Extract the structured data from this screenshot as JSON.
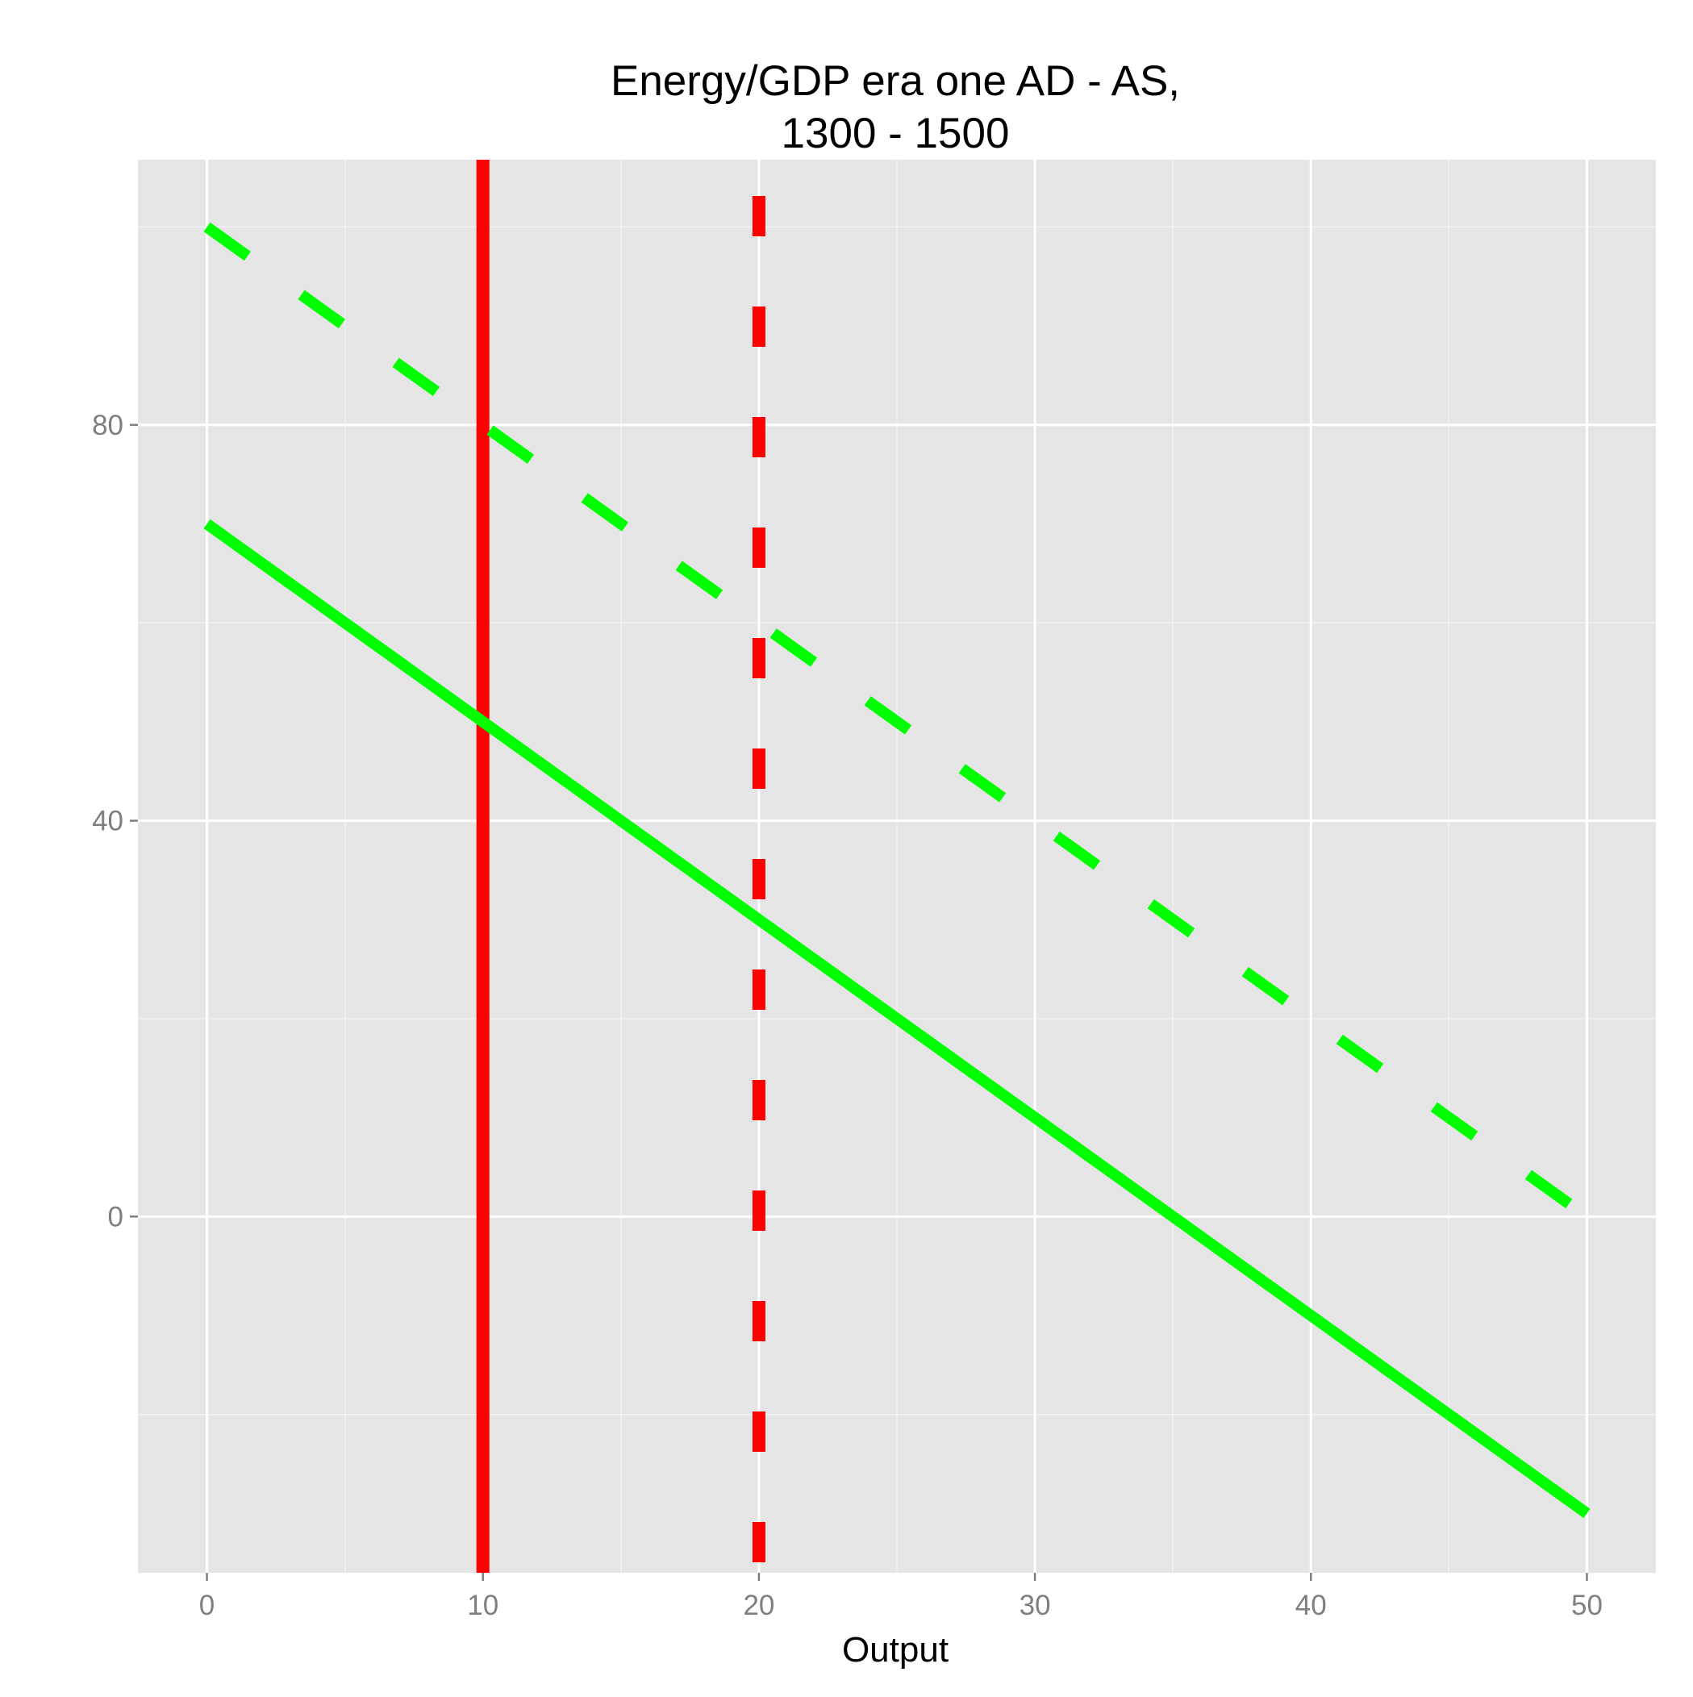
{
  "chart_data": {
    "type": "line",
    "title_line1": "Energy/GDP era one AD - AS,",
    "title_line2": "1300 - 1500",
    "xlabel": "Output",
    "ylabel": "",
    "xlim": [
      -2.5,
      52.5
    ],
    "ylim": [
      -90,
      267
    ],
    "x_ticks": [
      0,
      10,
      20,
      30,
      40,
      50
    ],
    "x_tick_labels": [
      "0",
      "10",
      "20",
      "30",
      "40",
      "50"
    ],
    "y_ticks": [
      0,
      100,
      200
    ],
    "y_tick_labels": [
      "0",
      "40",
      "80"
    ],
    "grid": true,
    "legend": "none",
    "series": [
      {
        "x": [
          0,
          50
        ],
        "y": [
          250,
          0
        ],
        "color": "#00ff00",
        "dash": "dashed"
      },
      {
        "x": [
          0,
          50
        ],
        "y": [
          175,
          -75
        ],
        "color": "#00ff00",
        "dash": "solid"
      }
    ],
    "vlines": [
      {
        "x": 10,
        "color": "#ff0000",
        "dash": "solid"
      },
      {
        "x": 20,
        "color": "#ff0000",
        "dash": "dashed"
      }
    ],
    "colors": {
      "panel": "#e5e5e5",
      "grid": "#ffffff",
      "ad_as": "#00ff00",
      "limit": "#ff0000"
    }
  }
}
